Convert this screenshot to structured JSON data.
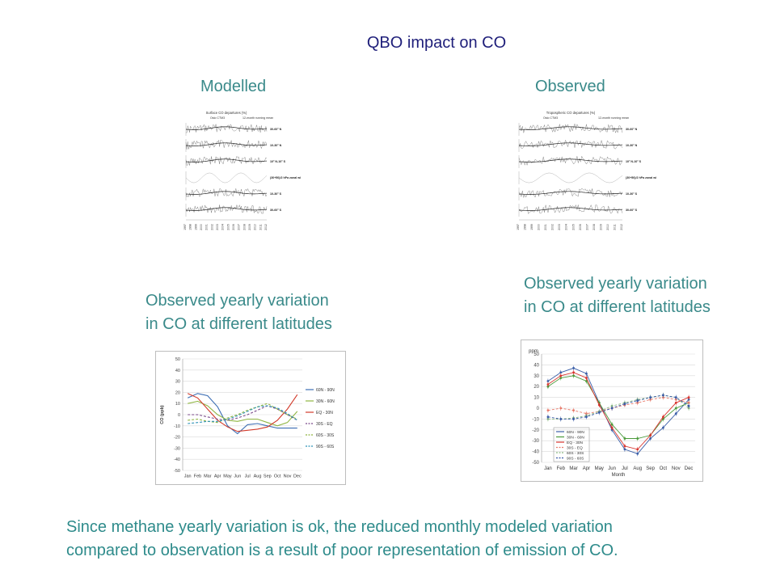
{
  "slide": {
    "title": "QBO impact on CO",
    "modelled_label": "Modelled",
    "observed_label": "Observed",
    "left_caption_line1": "Observed yearly variation",
    "left_caption_line2": "in CO at different latitudes",
    "right_caption_line1": "Observed yearly variation",
    "right_caption_line2": "in CO at different latitudes",
    "footer_line1": "Since methane yearly variation is ok, the reduced monthly modeled variation",
    "footer_line2": "compared to observation is a result of poor representation of emission of CO."
  },
  "timeseries_left": {
    "legend_title": "Surface CO departures (%)",
    "legend_items": [
      "Oslo CTM3",
      "12-month running mean"
    ],
    "row_labels": [
      "30-60° N",
      "10-30° N",
      "10° N-10° S",
      "(30+50)/2 hPa zonal winds at equator",
      "10-30° S",
      "30-60° S"
    ],
    "years": [
      "1997",
      "1998",
      "1999",
      "2000",
      "2001",
      "2002",
      "2003",
      "2004",
      "2005",
      "2006",
      "2007",
      "2008",
      "2009",
      "2010",
      "2011",
      "2012"
    ]
  },
  "timeseries_right": {
    "legend_title": "Tropospheric CO departures (%)",
    "legend_items": [
      "Oslo CTM3",
      "12-month running mean"
    ],
    "row_labels": [
      "30-60° N",
      "10-30° N",
      "10° N-10° S",
      "(30+50)/2 hPa zonal winds at equator",
      "10-30° S",
      "30-60° S"
    ],
    "years": [
      "1997",
      "1998",
      "1999",
      "2000",
      "2001",
      "2002",
      "2003",
      "2004",
      "2005",
      "2006",
      "2007",
      "2008",
      "2009",
      "2010",
      "2011",
      "2012"
    ]
  },
  "chart_data": [
    {
      "type": "line",
      "ylabel": "CO (ppb)",
      "ylim": [
        -50,
        50
      ],
      "yticks": [
        50,
        40,
        30,
        20,
        10,
        0,
        -10,
        -20,
        -30,
        -40,
        -50
      ],
      "categories": [
        "Jan",
        "Feb",
        "Mar",
        "Apr",
        "May",
        "Jun",
        "Jul",
        "Aug",
        "Sep",
        "Oct",
        "Nov",
        "Dec"
      ],
      "legend_position": "right",
      "series": [
        {
          "name": "60N - 90N",
          "color": "#3b6db3",
          "dash": "solid",
          "values": [
            15,
            19,
            17,
            7,
            -10,
            -17,
            -9,
            -8,
            -10,
            -12,
            -12,
            -12
          ]
        },
        {
          "name": "30N - 60N",
          "color": "#8fb542",
          "dash": "solid",
          "values": [
            10,
            12,
            8,
            0,
            -5,
            -6,
            -4,
            -4,
            -7,
            -10,
            -7,
            3
          ]
        },
        {
          "name": "EQ - 30N",
          "color": "#d23a2a",
          "dash": "solid",
          "values": [
            19,
            15,
            5,
            -5,
            -11,
            -15,
            -14,
            -13,
            -11,
            -5,
            5,
            18
          ]
        },
        {
          "name": "30S - EQ",
          "color": "#7a4a8a",
          "dash": "dashed",
          "values": [
            0,
            0,
            -2,
            -4,
            -5,
            -3,
            0,
            4,
            8,
            5,
            0,
            -5
          ]
        },
        {
          "name": "60S - 30S",
          "color": "#8fb542",
          "dash": "dashed",
          "values": [
            -5,
            -4,
            -6,
            -7,
            -3,
            0,
            4,
            7,
            10,
            5,
            0,
            -4
          ]
        },
        {
          "name": "90S - 60S",
          "color": "#2f93b8",
          "dash": "dashed",
          "values": [
            -8,
            -7,
            -6,
            -6,
            -4,
            -1,
            3,
            7,
            8,
            6,
            1,
            -5
          ]
        }
      ]
    },
    {
      "type": "line",
      "ylabel": "ppm",
      "xlabel": "Month",
      "ylim": [
        -50,
        50
      ],
      "yticks": [
        50,
        40,
        30,
        20,
        10,
        0,
        -10,
        -20,
        -30,
        -40,
        -50
      ],
      "categories": [
        "Jan",
        "Feb",
        "Mar",
        "Apr",
        "May",
        "Jun",
        "Jul",
        "Aug",
        "Sep",
        "Oct",
        "Nov",
        "Dec"
      ],
      "legend_position": "bottom-left",
      "series": [
        {
          "name": "60N - 90N",
          "color": "#3b5fa8",
          "dash": "solid",
          "values": [
            25,
            33,
            37,
            32,
            5,
            -20,
            -38,
            -42,
            -28,
            -18,
            -5,
            8
          ]
        },
        {
          "name": "30N - 60N",
          "color": "#4a9a3a",
          "dash": "solid",
          "values": [
            20,
            28,
            30,
            25,
            5,
            -15,
            -28,
            -28,
            -25,
            -10,
            0,
            5
          ]
        },
        {
          "name": "EQ - 30N",
          "color": "#d8342e",
          "dash": "solid",
          "values": [
            22,
            30,
            33,
            28,
            3,
            -18,
            -35,
            -38,
            -25,
            -8,
            5,
            10
          ]
        },
        {
          "name": "30S - EQ",
          "color": "#e87a6a",
          "dash": "dashed",
          "values": [
            -2,
            0,
            -2,
            -5,
            -3,
            0,
            3,
            5,
            8,
            10,
            8,
            5
          ]
        },
        {
          "name": "60S - 30S",
          "color": "#8ab880",
          "dash": "dashed",
          "values": [
            -10,
            -10,
            -9,
            -7,
            -3,
            2,
            5,
            8,
            10,
            12,
            10,
            0
          ]
        },
        {
          "name": "90S - 60S",
          "color": "#3a5aa8",
          "dash": "dashed",
          "values": [
            -8,
            -10,
            -10,
            -8,
            -4,
            0,
            4,
            7,
            10,
            12,
            10,
            2
          ]
        }
      ]
    }
  ]
}
